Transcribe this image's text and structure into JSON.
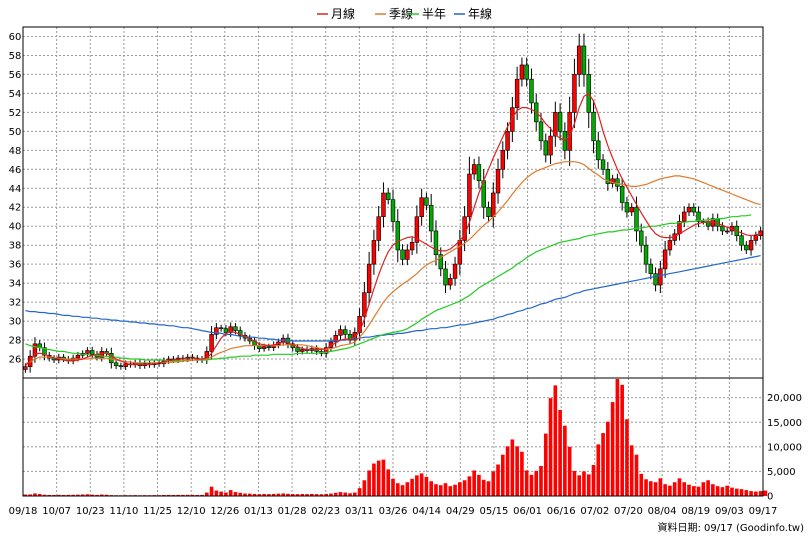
{
  "chart_data": [
    {
      "type": "candlestick",
      "legend": [
        {
          "label": "月線",
          "color": "#dd2222"
        },
        {
          "label": "季線",
          "color": "#e07a2a"
        },
        {
          "label": "半年",
          "color": "#22cc22"
        },
        {
          "label": "年線",
          "color": "#2266cc"
        }
      ],
      "ylim": [
        24,
        61
      ],
      "y_ticks": [
        26,
        28,
        30,
        32,
        34,
        36,
        38,
        40,
        42,
        44,
        46,
        48,
        50,
        52,
        54,
        56,
        58,
        60
      ],
      "x_ticks": [
        "09/18",
        "10/07",
        "10/23",
        "11/10",
        "11/25",
        "12/10",
        "12/26",
        "01/13",
        "01/28",
        "02/23",
        "03/11",
        "03/26",
        "04/14",
        "04/29",
        "05/15",
        "06/01",
        "06/16",
        "07/02",
        "07/20",
        "08/04",
        "08/19",
        "09/03",
        "09/17"
      ],
      "colors": {
        "up": "#ff0000",
        "down": "#00aa00",
        "wick": "#000000",
        "volume": "#ff0000"
      },
      "closes": [
        25.2,
        26.3,
        27.6,
        27.2,
        26.4,
        26.1,
        25.9,
        26.2,
        26.0,
        25.8,
        26.1,
        26.4,
        26.6,
        26.9,
        26.5,
        26.2,
        26.8,
        26.6,
        25.6,
        25.3,
        25.2,
        25.5,
        25.4,
        25.6,
        25.3,
        25.5,
        25.4,
        25.6,
        25.5,
        25.8,
        26.0,
        25.9,
        26.1,
        26.0,
        26.2,
        26.1,
        25.9,
        26.0,
        26.8,
        28.6,
        29.3,
        29.2,
        28.8,
        29.4,
        29.0,
        28.5,
        28.2,
        27.9,
        27.4,
        27.1,
        27.3,
        27.2,
        27.5,
        27.8,
        28.2,
        27.6,
        27.2,
        26.8,
        27.0,
        26.9,
        27.1,
        26.8,
        26.6,
        27.2,
        27.8,
        28.5,
        29.1,
        28.6,
        28.0,
        28.8,
        30.5,
        33.0,
        36.0,
        38.5,
        41.0,
        43.5,
        42.8,
        40.5,
        37.5,
        36.5,
        37.5,
        38.3,
        41.0,
        43.0,
        42.2,
        39.5,
        37.0,
        35.5,
        33.8,
        34.5,
        36.0,
        38.5,
        41.0,
        45.5,
        46.5,
        44.8,
        42.0,
        41.0,
        43.5,
        46.0,
        48.0,
        50.0,
        52.5,
        55.5,
        57.0,
        55.5,
        53.0,
        51.0,
        49.0,
        47.5,
        49.5,
        52.0,
        50.0,
        48.0,
        52.0,
        56.0,
        59.0,
        56.0,
        52.0,
        49.0,
        47.0,
        46.0,
        44.5,
        45.0,
        44.2,
        42.5,
        41.5,
        42.0,
        39.5,
        38.0,
        36.0,
        35.0,
        33.8,
        35.5,
        37.5,
        38.5,
        39.2,
        40.5,
        41.5,
        42.0,
        41.5,
        40.5,
        40.5,
        40.0,
        40.8,
        40.0,
        39.5,
        39.5,
        40.0,
        39.0,
        38.0,
        37.5,
        38.5,
        39.0,
        39.5
      ],
      "ma_month": [
        25.3,
        25.8,
        26.5,
        26.6,
        26.5,
        26.3,
        26.1,
        26.0,
        25.9,
        25.8,
        25.8,
        25.9,
        26.0,
        26.2,
        26.4,
        26.5,
        26.6,
        26.6,
        26.3,
        26.0,
        25.8,
        25.6,
        25.4,
        25.4,
        25.4,
        25.4,
        25.4,
        25.5,
        25.6,
        25.7,
        25.8,
        25.9,
        26.0,
        26.0,
        26.1,
        26.1,
        26.0,
        26.0,
        26.1,
        26.6,
        27.4,
        28.2,
        28.7,
        28.9,
        28.8,
        28.6,
        28.4,
        28.1,
        27.9,
        27.6,
        27.5,
        27.4,
        27.5,
        27.6,
        27.8,
        27.7,
        27.5,
        27.3,
        27.1,
        27.0,
        27.0,
        27.0,
        27.0,
        27.1,
        27.4,
        27.7,
        28.0,
        28.1,
        28.1,
        28.3,
        28.9,
        30.2,
        31.8,
        33.4,
        34.9,
        36.2,
        37.3,
        38.0,
        38.4,
        38.6,
        38.8,
        38.9,
        38.7,
        38.4,
        38.1,
        37.8,
        37.5,
        37.4,
        37.4,
        37.6,
        38.0,
        38.5,
        39.1,
        40.4,
        42.0,
        43.5,
        44.8,
        46.0,
        47.2,
        48.3,
        49.4,
        50.5,
        51.4,
        52.2,
        52.5,
        52.5,
        52.3,
        52.0,
        51.5,
        50.8,
        50.3,
        49.6,
        49.3,
        49.0,
        49.5,
        50.8,
        52.5,
        53.7,
        54.0,
        53.2,
        51.8,
        50.0,
        48.5,
        47.2,
        46.0,
        45.0,
        44.1,
        43.2,
        42.3,
        41.4,
        40.6,
        39.8,
        39.2,
        38.9,
        38.8,
        38.8,
        38.9,
        39.2,
        39.5,
        39.8,
        40.1,
        40.3,
        40.4,
        40.5,
        40.4,
        40.3,
        40.1,
        39.9,
        39.7,
        39.5,
        39.3,
        39.1,
        39.0,
        39.1,
        39.2
      ],
      "ma_quarter": [
        25.5,
        25.7,
        26.0,
        26.2,
        26.2,
        26.2,
        26.1,
        26.1,
        26.0,
        26.0,
        26.0,
        26.0,
        26.0,
        26.0,
        26.1,
        26.1,
        26.1,
        26.1,
        26.0,
        25.9,
        25.8,
        25.7,
        25.7,
        25.6,
        25.6,
        25.6,
        25.6,
        25.6,
        25.6,
        25.6,
        25.6,
        25.7,
        25.7,
        25.8,
        25.8,
        25.9,
        25.9,
        26.0,
        26.0,
        26.2,
        26.5,
        26.7,
        26.9,
        27.1,
        27.2,
        27.3,
        27.4,
        27.4,
        27.4,
        27.4,
        27.4,
        27.4,
        27.4,
        27.4,
        27.5,
        27.5,
        27.5,
        27.5,
        27.5,
        27.4,
        27.3,
        27.2,
        27.1,
        27.0,
        27.1,
        27.2,
        27.4,
        27.5,
        27.6,
        27.8,
        28.3,
        28.9,
        29.6,
        30.4,
        31.2,
        32.0,
        32.6,
        33.1,
        33.5,
        33.9,
        34.2,
        34.6,
        35.0,
        35.5,
        35.9,
        36.2,
        36.4,
        36.7,
        37.0,
        37.3,
        37.6,
        37.9,
        38.2,
        38.6,
        39.1,
        39.6,
        40.1,
        40.5,
        41.0,
        41.5,
        42.1,
        42.7,
        43.4,
        44.0,
        44.6,
        45.1,
        45.5,
        45.8,
        46.0,
        46.2,
        46.4,
        46.6,
        46.7,
        46.8,
        46.8,
        46.8,
        46.7,
        46.5,
        46.1,
        45.7,
        45.4,
        45.0,
        44.8,
        44.6,
        44.5,
        44.4,
        44.3,
        44.2,
        44.2,
        44.3,
        44.4,
        44.6,
        44.8,
        45.0,
        45.1,
        45.2,
        45.3,
        45.3,
        45.2,
        45.1,
        45.0,
        44.8,
        44.6,
        44.4,
        44.2,
        44.0,
        43.8,
        43.6,
        43.4,
        43.2,
        43.0,
        42.8,
        42.6,
        42.4,
        42.3
      ],
      "ma_half": [
        27.6,
        27.4,
        27.3,
        27.2,
        27.1,
        27.0,
        26.9,
        26.8,
        26.8,
        26.7,
        26.6,
        26.6,
        26.5,
        26.5,
        26.4,
        26.4,
        26.3,
        26.3,
        26.2,
        26.2,
        26.1,
        26.1,
        26.0,
        26.0,
        26.0,
        25.9,
        25.9,
        25.9,
        25.9,
        25.9,
        25.8,
        25.8,
        25.8,
        25.8,
        25.9,
        25.9,
        25.9,
        25.9,
        25.9,
        26.0,
        26.0,
        26.1,
        26.1,
        26.2,
        26.2,
        26.3,
        26.3,
        26.3,
        26.4,
        26.4,
        26.4,
        26.4,
        26.5,
        26.5,
        26.5,
        26.5,
        26.5,
        26.6,
        26.6,
        26.6,
        26.6,
        26.6,
        26.7,
        26.7,
        26.8,
        26.9,
        27.0,
        27.1,
        27.2,
        27.4,
        27.6,
        27.8,
        28.0,
        28.2,
        28.4,
        28.6,
        28.7,
        28.8,
        28.9,
        29.0,
        29.2,
        29.5,
        29.8,
        30.2,
        30.5,
        30.8,
        31.1,
        31.3,
        31.5,
        31.7,
        31.9,
        32.1,
        32.4,
        32.7,
        33.1,
        33.5,
        33.8,
        34.1,
        34.4,
        34.7,
        35.0,
        35.3,
        35.6,
        36.0,
        36.3,
        36.7,
        37.0,
        37.3,
        37.5,
        37.7,
        37.9,
        38.1,
        38.3,
        38.4,
        38.5,
        38.6,
        38.7,
        38.9,
        39.0,
        39.1,
        39.2,
        39.3,
        39.4,
        39.4,
        39.5,
        39.6,
        39.6,
        39.7,
        39.8,
        39.8,
        39.9,
        40.0,
        40.0,
        40.1,
        40.2,
        40.3,
        40.3,
        40.4,
        40.4,
        40.5,
        40.5,
        40.6,
        40.6,
        40.7,
        40.7,
        40.8,
        40.8,
        40.9,
        41.0,
        41.0,
        41.1,
        41.1,
        41.2
      ],
      "ma_year": [
        31.1,
        31.0,
        31.0,
        30.9,
        30.9,
        30.8,
        30.8,
        30.7,
        30.6,
        30.6,
        30.5,
        30.5,
        30.4,
        30.4,
        30.3,
        30.3,
        30.2,
        30.2,
        30.1,
        30.1,
        30.0,
        30.0,
        29.9,
        29.9,
        29.8,
        29.8,
        29.7,
        29.7,
        29.6,
        29.6,
        29.5,
        29.5,
        29.4,
        29.3,
        29.3,
        29.2,
        29.1,
        29.0,
        28.9,
        28.8,
        28.8,
        28.7,
        28.6,
        28.6,
        28.5,
        28.4,
        28.4,
        28.3,
        28.3,
        28.2,
        28.2,
        28.1,
        28.1,
        28.0,
        28.0,
        28.0,
        27.9,
        27.9,
        27.9,
        27.9,
        27.9,
        27.9,
        27.9,
        27.9,
        27.9,
        27.9,
        28.0,
        28.0,
        28.1,
        28.1,
        28.2,
        28.3,
        28.3,
        28.4,
        28.5,
        28.5,
        28.6,
        28.6,
        28.7,
        28.7,
        28.8,
        28.9,
        29.0,
        29.0,
        29.1,
        29.2,
        29.2,
        29.3,
        29.3,
        29.4,
        29.5,
        29.6,
        29.6,
        29.7,
        29.8,
        29.9,
        30.0,
        30.1,
        30.2,
        30.4,
        30.5,
        30.7,
        30.8,
        31.0,
        31.1,
        31.3,
        31.4,
        31.6,
        31.8,
        31.9,
        32.1,
        32.3,
        32.4,
        32.5,
        32.7,
        32.9,
        33.0,
        33.2,
        33.3,
        33.4,
        33.5,
        33.6,
        33.7,
        33.8,
        33.9,
        34.0,
        34.1,
        34.2,
        34.3,
        34.4,
        34.5,
        34.6,
        34.7,
        34.8,
        34.9,
        35.0,
        35.1,
        35.2,
        35.3,
        35.4,
        35.5,
        35.6,
        35.7,
        35.8,
        35.9,
        36.0,
        36.1,
        36.2,
        36.3,
        36.4,
        36.5,
        36.6,
        36.7,
        36.8,
        36.9
      ],
      "volumes": [
        300,
        320,
        520,
        400,
        260,
        220,
        200,
        240,
        210,
        230,
        250,
        280,
        310,
        350,
        270,
        220,
        300,
        260,
        180,
        160,
        150,
        170,
        160,
        180,
        150,
        170,
        160,
        180,
        170,
        200,
        220,
        210,
        230,
        220,
        240,
        230,
        210,
        220,
        700,
        1900,
        1100,
        900,
        700,
        1200,
        800,
        650,
        500,
        480,
        420,
        380,
        400,
        390,
        420,
        480,
        520,
        460,
        400,
        380,
        400,
        390,
        420,
        380,
        360,
        420,
        500,
        650,
        800,
        700,
        560,
        700,
        1600,
        3200,
        5200,
        6600,
        7200,
        7400,
        5400,
        3500,
        2600,
        2200,
        2800,
        3500,
        4200,
        4600,
        3900,
        3000,
        2400,
        2200,
        2600,
        2000,
        2300,
        2800,
        3200,
        4000,
        5200,
        4300,
        3300,
        3000,
        5000,
        6400,
        8400,
        10100,
        11500,
        10100,
        9000,
        5200,
        4300,
        5100,
        6100,
        12700,
        19900,
        22500,
        17500,
        14300,
        10000,
        5100,
        4200,
        5000,
        4400,
        6300,
        10500,
        12800,
        15100,
        19100,
        23800,
        22600,
        15600,
        10300,
        8400,
        4500,
        3400,
        3000,
        2800,
        3600,
        2400,
        2100,
        2800,
        3600,
        2800,
        2300,
        2000,
        1900,
        2800,
        3200,
        2400,
        2000,
        1800,
        2100,
        1700,
        1500,
        1400,
        1200,
        1000,
        900,
        1000,
        1100
      ],
      "volume_axis": {
        "ylim": [
          0,
          24000
        ],
        "ticks": [
          "0",
          "5,000",
          "10,000",
          "15,000",
          "20,000"
        ]
      },
      "footer": "資料日期: 09/17  (Goodinfo.tw)"
    }
  ]
}
